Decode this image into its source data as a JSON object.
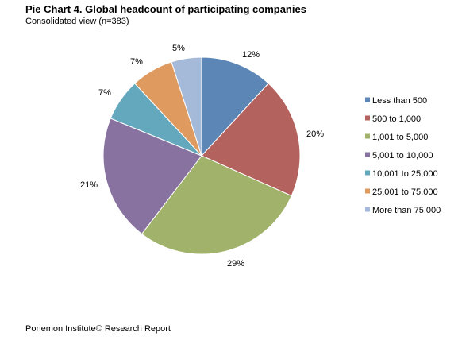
{
  "header": {
    "title": "Pie Chart 4. Global headcount of participating companies",
    "subtitle": "Consolidated view (n=383)"
  },
  "footer": {
    "text": "Ponemon Institute© Research Report"
  },
  "chart_data": {
    "type": "pie",
    "title": "Pie Chart 4. Global headcount of participating companies",
    "subtitle": "Consolidated view (n=383)",
    "legend_position": "right",
    "slices": [
      {
        "label": "Less than 500",
        "value": 12,
        "value_label": "12%",
        "color": "#5b86b5"
      },
      {
        "label": "500 to 1,000",
        "value": 20,
        "value_label": "20%",
        "color": "#b4625d"
      },
      {
        "label": "1,001 to 5,000",
        "value": 29,
        "value_label": "29%",
        "color": "#a1b36a"
      },
      {
        "label": "5,001 to 10,000",
        "value": 21,
        "value_label": "21%",
        "color": "#8872a0"
      },
      {
        "label": "10,001 to 25,000",
        "value": 7,
        "value_label": "7%",
        "color": "#64a8bd"
      },
      {
        "label": "25,001 to 75,000",
        "value": 7,
        "value_label": "7%",
        "color": "#de9a5f"
      },
      {
        "label": "More than 75,000",
        "value": 5,
        "value_label": "5%",
        "color": "#a5b9d8"
      }
    ]
  }
}
